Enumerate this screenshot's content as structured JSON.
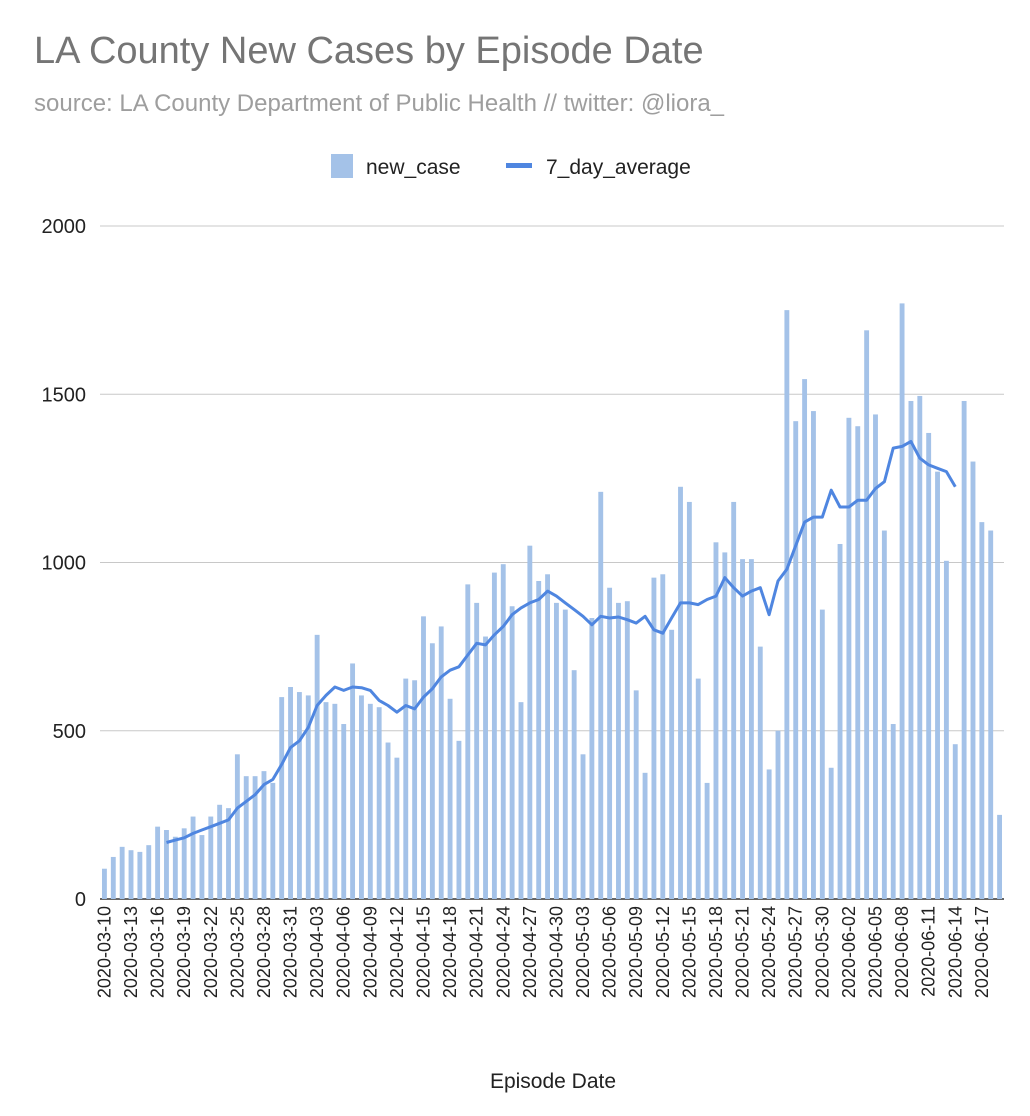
{
  "chart_data": {
    "type": "bar",
    "title": "LA County New Cases by Episode Date",
    "subtitle": "source: LA County Department of Public Health // twitter: @liora_",
    "xlabel": "Episode Date",
    "ylabel": "",
    "ylim": [
      0,
      2000
    ],
    "yticks": [
      0,
      500,
      1000,
      1500,
      2000
    ],
    "grid": true,
    "legend_position": "top-center",
    "start_date": "2020-03-10",
    "tick_labels": [
      "2020-03-10",
      "2020-03-13",
      "2020-03-16",
      "2020-03-19",
      "2020-03-22",
      "2020-03-25",
      "2020-03-28",
      "2020-03-31",
      "2020-04-03",
      "2020-04-06",
      "2020-04-09",
      "2020-04-12",
      "2020-04-15",
      "2020-04-18",
      "2020-04-21",
      "2020-04-24",
      "2020-04-27",
      "2020-04-30",
      "2020-05-03",
      "2020-05-06",
      "2020-05-09",
      "2020-05-12",
      "2020-05-15",
      "2020-05-18",
      "2020-05-21",
      "2020-05-24",
      "2020-05-27",
      "2020-05-30",
      "2020-06-02",
      "2020-06-05",
      "2020-06-08",
      "2020-06-11",
      "2020-06-14",
      "2020-06-17"
    ],
    "tick_every": 3,
    "series": [
      {
        "name": "new_case",
        "kind": "bar",
        "color": "#a4c2e8",
        "values": [
          90,
          125,
          155,
          145,
          140,
          160,
          215,
          205,
          185,
          210,
          245,
          190,
          245,
          280,
          270,
          430,
          365,
          365,
          380,
          345,
          600,
          630,
          615,
          605,
          785,
          585,
          580,
          520,
          700,
          605,
          580,
          570,
          465,
          420,
          655,
          650,
          840,
          760,
          810,
          595,
          470,
          935,
          880,
          780,
          970,
          995,
          870,
          585,
          1050,
          945,
          965,
          880,
          860,
          680,
          430,
          835,
          1210,
          925,
          880,
          885,
          620,
          375,
          955,
          965,
          800,
          1225,
          1180,
          655,
          345,
          1060,
          1030,
          1180,
          1010,
          1010,
          750,
          385,
          500,
          1750,
          1420,
          1545,
          1450,
          860,
          390,
          1055,
          1430,
          1405,
          1690,
          1440,
          1095,
          520,
          1770,
          1480,
          1495,
          1385,
          1270,
          1005,
          460,
          1480,
          1300,
          1120,
          1095,
          250
        ]
      },
      {
        "name": "7_day_average",
        "kind": "line",
        "color": "#4f86e0",
        "start_index": 7,
        "values": [
          168,
          175,
          182,
          195,
          205,
          215,
          225,
          235,
          270,
          290,
          310,
          340,
          355,
          400,
          450,
          470,
          510,
          575,
          605,
          630,
          620,
          630,
          628,
          620,
          590,
          575,
          555,
          575,
          565,
          600,
          625,
          660,
          680,
          690,
          725,
          760,
          755,
          785,
          810,
          845,
          865,
          880,
          890,
          915,
          900,
          880,
          860,
          840,
          815,
          840,
          835,
          838,
          830,
          820,
          840,
          800,
          790,
          835,
          880,
          880,
          875,
          890,
          900,
          955,
          925,
          900,
          915,
          925,
          845,
          945,
          980,
          1050,
          1120,
          1135,
          1135,
          1215,
          1165,
          1165,
          1185,
          1185,
          1220,
          1240,
          1340,
          1345,
          1360,
          1310,
          1290,
          1280,
          1270,
          1225
        ]
      }
    ]
  }
}
